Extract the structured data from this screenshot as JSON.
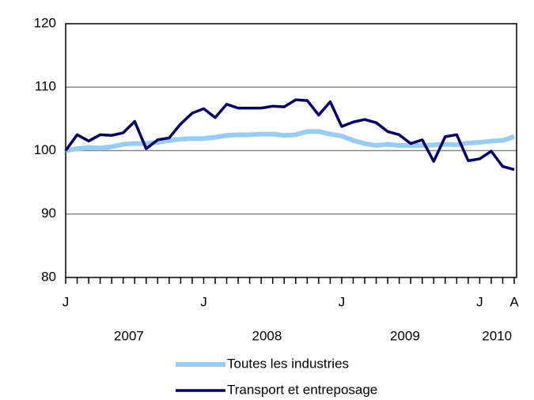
{
  "chart_data": {
    "type": "line",
    "categories": [
      "J",
      null,
      null,
      null,
      null,
      null,
      null,
      null,
      null,
      null,
      null,
      null,
      "J",
      null,
      null,
      null,
      null,
      null,
      null,
      null,
      null,
      null,
      null,
      null,
      "J",
      null,
      null,
      null,
      null,
      null,
      null,
      null,
      null,
      null,
      null,
      null,
      "J",
      null,
      null,
      "A"
    ],
    "x_groups": [
      {
        "label": "2007",
        "span": 12
      },
      {
        "label": "2008",
        "span": 12
      },
      {
        "label": "2009",
        "span": 12
      },
      {
        "label": "2010",
        "span": 4
      }
    ],
    "series": [
      {
        "name": "Toutes les industries",
        "color": "#99ccf2",
        "values": [
          100,
          100.3,
          100.5,
          100.4,
          100.6,
          101,
          101.1,
          101.1,
          101.3,
          101.6,
          101.8,
          101.9,
          101.9,
          102.1,
          102.4,
          102.5,
          102.5,
          102.6,
          102.6,
          102.4,
          102.5,
          103,
          103,
          102.6,
          102.3,
          101.6,
          101.1,
          100.8,
          101,
          100.8,
          100.8,
          100.8,
          100.9,
          101,
          100.9,
          101.2,
          101.3,
          101.5,
          101.6,
          102.2
        ]
      },
      {
        "name": "Transport et entreposage",
        "color": "#000066",
        "values": [
          100,
          102.5,
          101.5,
          102.5,
          102.4,
          102.8,
          104.6,
          100.3,
          101.7,
          102,
          104.2,
          105.9,
          106.6,
          105.2,
          107.3,
          106.7,
          106.7,
          106.7,
          107,
          106.9,
          108,
          107.9,
          105.6,
          107.7,
          103.8,
          104.5,
          104.9,
          104.4,
          103,
          102.5,
          101.1,
          101.7,
          98.3,
          102.2,
          102.5,
          98.4,
          98.7,
          99.9,
          97.5,
          97
        ]
      }
    ],
    "ylim": [
      80,
      120
    ],
    "yticks": [
      80,
      90,
      100,
      110,
      120
    ],
    "grid": true
  }
}
